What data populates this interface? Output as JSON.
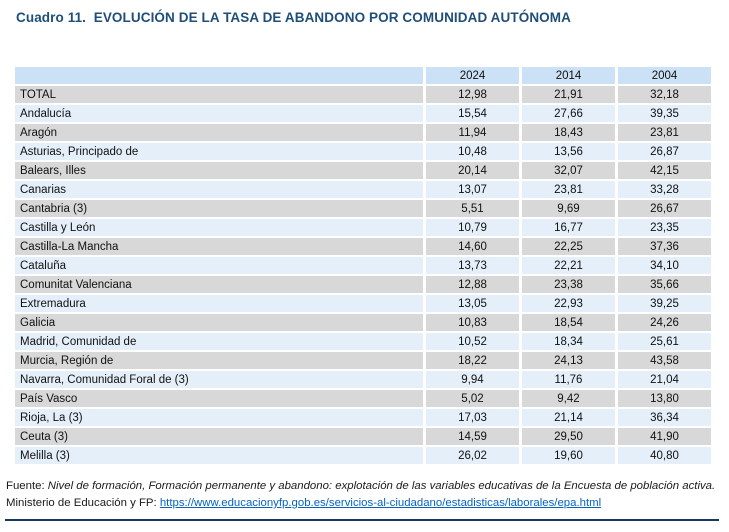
{
  "title": "Cuadro 11.  EVOLUCIÓN DE LA TASA DE ABANDONO POR COMUNIDAD AUTÓNOMA",
  "table": {
    "columns": [
      "2024",
      "2014",
      "2004"
    ],
    "rows": [
      {
        "label": "TOTAL",
        "values": [
          "12,98",
          "21,91",
          "32,18"
        ]
      },
      {
        "label": "Andalucía",
        "values": [
          "15,54",
          "27,66",
          "39,35"
        ]
      },
      {
        "label": "Aragón",
        "values": [
          "11,94",
          "18,43",
          "23,81"
        ]
      },
      {
        "label": "Asturias, Principado de",
        "values": [
          "10,48",
          "13,56",
          "26,87"
        ]
      },
      {
        "label": "Balears, Illes",
        "values": [
          "20,14",
          "32,07",
          "42,15"
        ]
      },
      {
        "label": "Canarias",
        "values": [
          "13,07",
          "23,81",
          "33,28"
        ]
      },
      {
        "label": "Cantabria (3)",
        "values": [
          "5,51",
          "9,69",
          "26,67"
        ]
      },
      {
        "label": "Castilla y León",
        "values": [
          "10,79",
          "16,77",
          "23,35"
        ]
      },
      {
        "label": "Castilla-La Mancha",
        "values": [
          "14,60",
          "22,25",
          "37,36"
        ]
      },
      {
        "label": "Cataluña",
        "values": [
          "13,73",
          "22,21",
          "34,10"
        ]
      },
      {
        "label": "Comunitat Valenciana",
        "values": [
          "12,88",
          "23,38",
          "35,66"
        ]
      },
      {
        "label": "Extremadura",
        "values": [
          "13,05",
          "22,93",
          "39,25"
        ]
      },
      {
        "label": "Galicia",
        "values": [
          "10,83",
          "18,54",
          "24,26"
        ]
      },
      {
        "label": "Madrid, Comunidad de",
        "values": [
          "10,52",
          "18,34",
          "25,61"
        ]
      },
      {
        "label": "Murcia, Región de",
        "values": [
          "18,22",
          "24,13",
          "43,58"
        ]
      },
      {
        "label": "Navarra, Comunidad Foral de (3)",
        "values": [
          "9,94",
          "11,76",
          "21,04"
        ]
      },
      {
        "label": "País Vasco",
        "values": [
          "5,02",
          "9,42",
          "13,80"
        ]
      },
      {
        "label": "Rioja, La (3)",
        "values": [
          "17,03",
          "21,14",
          "36,34"
        ]
      },
      {
        "label": "Ceuta (3)",
        "values": [
          "14,59",
          "29,50",
          "41,90"
        ]
      },
      {
        "label": "Melilla (3)",
        "values": [
          "26,02",
          "19,60",
          "40,80"
        ]
      }
    ]
  },
  "footer": {
    "fuente_prefix": "Fuente: ",
    "fuente_source": "Nivel de formación, Formación permanente y abandono: explotación de las variables educativas de la Encuesta de población activa.",
    "ministerio_prefix": "Ministerio de Educación y FP: ",
    "link_text": "https://www.educacionyfp.gob.es/servicios-al-ciudadano/estadisticas/laborales/epa.html"
  },
  "colors": {
    "title_text": "#1F4E79",
    "header_row_bg": "#CBE1F5",
    "row_gray_bg": "#D8D8D9",
    "row_blue_bg": "#E4EFFA",
    "link": "#0563C1",
    "bottom_rule": "#17375E"
  }
}
